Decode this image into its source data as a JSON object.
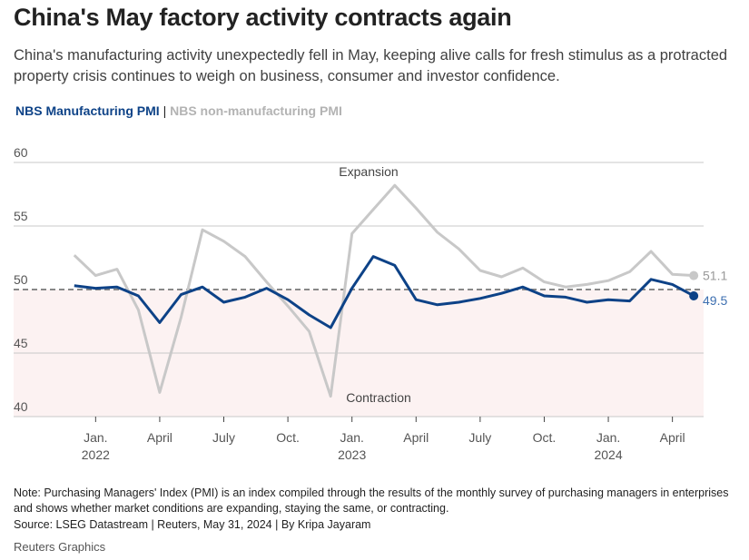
{
  "header": {
    "title": "China's May factory activity contracts again",
    "subtitle": "China's manufacturing activity unexpectedly fell in May, keeping alive calls for fresh stimulus as a protracted property crisis continues to weigh on business, consumer and investor confidence."
  },
  "legend": {
    "items": [
      "NBS Manufacturing PMI",
      "NBS non-manufacturing PMI"
    ],
    "separator": "|"
  },
  "chart_data": {
    "type": "line",
    "x": [
      "2021-12",
      "2022-01",
      "2022-02",
      "2022-03",
      "2022-04",
      "2022-05",
      "2022-06",
      "2022-07",
      "2022-08",
      "2022-09",
      "2022-10",
      "2022-11",
      "2022-12",
      "2023-01",
      "2023-02",
      "2023-03",
      "2023-04",
      "2023-05",
      "2023-06",
      "2023-07",
      "2023-08",
      "2023-09",
      "2023-10",
      "2023-11",
      "2023-12",
      "2024-01",
      "2024-02",
      "2024-03",
      "2024-04",
      "2024-05"
    ],
    "series": [
      {
        "name": "NBS Manufacturing PMI",
        "color": "#0d4287",
        "values": [
          50.3,
          50.1,
          50.2,
          49.5,
          47.4,
          49.6,
          50.2,
          49.0,
          49.4,
          50.1,
          49.2,
          48.0,
          47.0,
          50.1,
          52.6,
          51.9,
          49.2,
          48.8,
          49.0,
          49.3,
          49.7,
          50.2,
          49.5,
          49.4,
          49.0,
          49.2,
          49.1,
          50.8,
          50.4,
          49.5
        ],
        "end_label": "49.5"
      },
      {
        "name": "NBS non-manufacturing PMI",
        "color": "#c8c8c8",
        "values": [
          52.7,
          51.1,
          51.6,
          48.4,
          41.9,
          47.8,
          54.7,
          53.8,
          52.6,
          50.6,
          48.7,
          46.7,
          41.6,
          54.4,
          56.3,
          58.2,
          56.4,
          54.5,
          53.2,
          51.5,
          51.0,
          51.7,
          50.6,
          50.2,
          50.4,
          50.7,
          51.4,
          53.0,
          51.2,
          51.1
        ],
        "end_label": "51.1"
      }
    ],
    "ylim": [
      40,
      60
    ],
    "yticks": [
      "60",
      "55",
      "50",
      "45",
      "40"
    ],
    "xticks": [
      {
        "at": "2022-01",
        "label": "Jan.",
        "year": "2022"
      },
      {
        "at": "2022-04",
        "label": "April"
      },
      {
        "at": "2022-07",
        "label": "July"
      },
      {
        "at": "2022-10",
        "label": "Oct."
      },
      {
        "at": "2023-01",
        "label": "Jan.",
        "year": "2023"
      },
      {
        "at": "2023-04",
        "label": "April"
      },
      {
        "at": "2023-07",
        "label": "July"
      },
      {
        "at": "2023-10",
        "label": "Oct."
      },
      {
        "at": "2024-01",
        "label": "Jan.",
        "year": "2024"
      },
      {
        "at": "2024-04",
        "label": "April"
      }
    ],
    "reference_line": 50,
    "annotations": {
      "expansion": "Expansion",
      "contraction": "Contraction"
    },
    "contraction_shade": "#fcf2f2",
    "grid": true
  },
  "footer": {
    "note": "Note: Purchasing Managers' Index (PMI) is an index compiled through the results of the monthly survey of purchasing managers in enterprises and shows whether market conditions are expanding, staying the same, or contracting.",
    "source": "Source: LSEG Datastream | Reuters, May 31, 2024 | By Kripa Jayaram",
    "brand": "Reuters Graphics"
  }
}
